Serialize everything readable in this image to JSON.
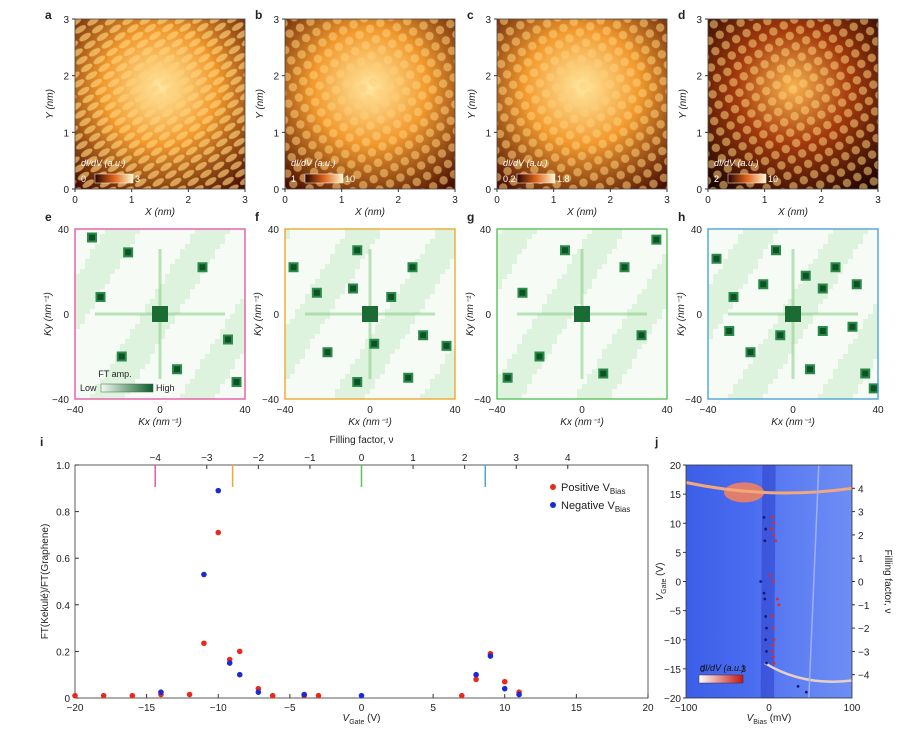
{
  "stm_panels": [
    {
      "letter": "a",
      "cbar_label": "dI/dV (a.u.)",
      "cbar_min": "0",
      "cbar_max": "3",
      "brightness": 0.95
    },
    {
      "letter": "b",
      "cbar_label": "dI/dV (a.u.)",
      "cbar_min": "1",
      "cbar_max": "10",
      "brightness": 0.8
    },
    {
      "letter": "c",
      "cbar_label": "dI/dV (a.u.)",
      "cbar_min": "0.2",
      "cbar_max": "1.8",
      "brightness": 0.9
    },
    {
      "letter": "d",
      "cbar_label": "dI/dV (a.u.)",
      "cbar_min": "2",
      "cbar_max": "10",
      "brightness": 0.6
    }
  ],
  "stm_axes": {
    "xlabel": "X (nm)",
    "ylabel": "Y (nm)",
    "ticks": [
      "0",
      "1",
      "2",
      "3"
    ]
  },
  "ft_panels": [
    {
      "letter": "e",
      "frame_color": "#e75aa6"
    },
    {
      "letter": "f",
      "frame_color": "#f0a830"
    },
    {
      "letter": "g",
      "frame_color": "#5cc15c"
    },
    {
      "letter": "h",
      "frame_color": "#4fa3d6"
    }
  ],
  "ft_axes": {
    "xlabel": "Kx (nm⁻¹)",
    "ylabel": "Ky (nm⁻¹)",
    "ticks": [
      "−40",
      "0",
      "40"
    ]
  },
  "ft_legend": {
    "title": "FT amp.",
    "low": "Low",
    "high": "High"
  },
  "panel_i": {
    "letter": "i",
    "top_axis_label": "Filling factor, ν",
    "top_ticks": [
      "−4",
      "−3",
      "−2",
      "−1",
      "0",
      "1",
      "2",
      "3",
      "4"
    ],
    "markers": [
      {
        "filling": -4.0,
        "color": "#e75aa6"
      },
      {
        "filling": -2.5,
        "color": "#f0a830"
      },
      {
        "filling": 0.0,
        "color": "#5cc15c"
      },
      {
        "filling": 2.4,
        "color": "#4fa3d6"
      }
    ],
    "legend": [
      {
        "label": "Positive V",
        "sub": "Bias",
        "color": "#e8291c"
      },
      {
        "label": "Negative V",
        "sub": "Bias",
        "color": "#1a2ad6"
      }
    ]
  },
  "panel_j": {
    "letter": "j",
    "xlabel": "V",
    "xlabel_sub": "Bias",
    "xlabel_unit": " (mV)",
    "ylabel": "V",
    "ylabel_sub": "Gate",
    "ylabel_unit": " (V)",
    "right_label": "Filling factor, ν",
    "x_ticks": [
      "−100",
      "0",
      "100"
    ],
    "y_ticks": [
      "20",
      "15",
      "10",
      "5",
      "0",
      "−5",
      "−10",
      "−15",
      "−20"
    ],
    "right_ticks": [
      "4",
      "3",
      "2",
      "1",
      "0",
      "−1",
      "−2",
      "−3",
      "−4"
    ],
    "cbar_label": "dI/dV (a.u.)",
    "cbar_min": "0",
    "cbar_max": "3"
  },
  "chart_data": {
    "type": "scatter",
    "xlabel": "V",
    "xlabel_sub": "Gate",
    "xlabel_unit": " (V)",
    "ylabel": "FT(Kekulé)/FT(Graphene)",
    "xlim": [
      -20,
      20
    ],
    "ylim": [
      0,
      1.0
    ],
    "x_ticks": [
      "−20",
      "−15",
      "−10",
      "−5",
      "0",
      "5",
      "10",
      "15",
      "20"
    ],
    "y_ticks": [
      "0",
      "0.2",
      "0.4",
      "0.6",
      "0.8",
      "1.0"
    ],
    "series": [
      {
        "name": "Positive V_Bias",
        "color": "#e8291c",
        "points": [
          [
            -20,
            0.01
          ],
          [
            -18,
            0.01
          ],
          [
            -16,
            0.01
          ],
          [
            -14,
            0.015
          ],
          [
            -12,
            0.015
          ],
          [
            -11,
            0.235
          ],
          [
            -10,
            0.71
          ],
          [
            -9.2,
            0.165
          ],
          [
            -8.5,
            0.2
          ],
          [
            -7.2,
            0.04
          ],
          [
            -6.2,
            0.01
          ],
          [
            -4,
            0.01
          ],
          [
            -3,
            0.01
          ],
          [
            7,
            0.01
          ],
          [
            8,
            0.08
          ],
          [
            9,
            0.19
          ],
          [
            10,
            0.07
          ],
          [
            11,
            0.025
          ]
        ]
      },
      {
        "name": "Negative V_Bias",
        "color": "#1a2ad6",
        "points": [
          [
            -14,
            0.025
          ],
          [
            -11,
            0.53
          ],
          [
            -10,
            0.89
          ],
          [
            -9.2,
            0.15
          ],
          [
            -8.5,
            0.1
          ],
          [
            -7.2,
            0.025
          ],
          [
            -4,
            0.015
          ],
          [
            0,
            0.01
          ],
          [
            8,
            0.1
          ],
          [
            9,
            0.18
          ],
          [
            10,
            0.04
          ],
          [
            11,
            0.015
          ]
        ]
      }
    ]
  }
}
